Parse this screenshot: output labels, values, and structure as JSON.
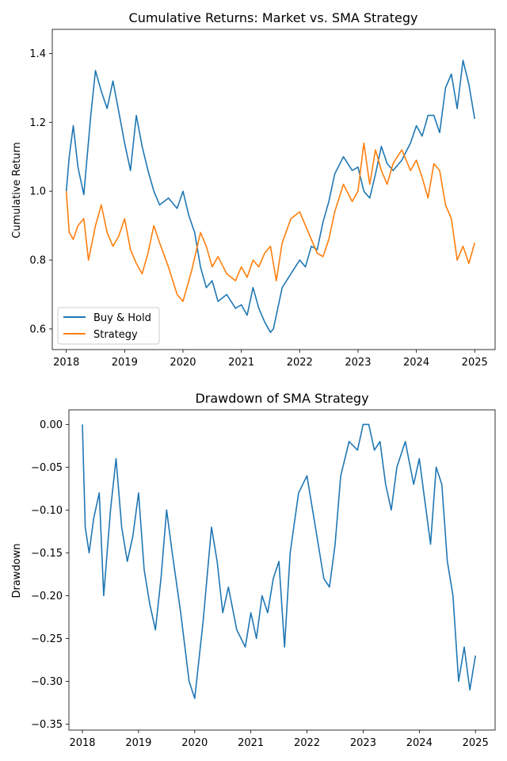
{
  "chart_data": [
    {
      "type": "line",
      "title": "Cumulative Returns: Market vs. SMA Strategy",
      "xlabel": "",
      "ylabel": "Cumulative Return",
      "x_ticks": [
        "2018",
        "2019",
        "2020",
        "2021",
        "2022",
        "2023",
        "2024",
        "2025"
      ],
      "y_ticks": [
        "0.6",
        "0.8",
        "1.0",
        "1.2",
        "1.4"
      ],
      "xlim": [
        2017.76,
        2025.35
      ],
      "ylim": [
        0.54,
        1.47
      ],
      "legend": {
        "placement": "lower-left",
        "entries": [
          "Buy & Hold",
          "Strategy"
        ]
      },
      "grid": false,
      "series": [
        {
          "name": "Buy & Hold",
          "color": "#1f77b4",
          "x": [
            2018.0,
            2018.05,
            2018.12,
            2018.2,
            2018.3,
            2018.42,
            2018.5,
            2018.6,
            2018.7,
            2018.8,
            2018.9,
            2019.0,
            2019.1,
            2019.2,
            2019.3,
            2019.4,
            2019.5,
            2019.6,
            2019.75,
            2019.9,
            2020.0,
            2020.1,
            2020.2,
            2020.3,
            2020.4,
            2020.5,
            2020.6,
            2020.75,
            2020.9,
            2021.0,
            2021.1,
            2021.2,
            2021.3,
            2021.4,
            2021.5,
            2021.55,
            2021.7,
            2021.85,
            2022.0,
            2022.1,
            2022.2,
            2022.3,
            2022.4,
            2022.5,
            2022.6,
            2022.75,
            2022.9,
            2023.0,
            2023.1,
            2023.2,
            2023.3,
            2023.4,
            2023.5,
            2023.6,
            2023.75,
            2023.9,
            2024.0,
            2024.1,
            2024.2,
            2024.3,
            2024.4,
            2024.5,
            2024.6,
            2024.7,
            2024.8,
            2024.9,
            2025.0
          ],
          "values": [
            1.0,
            1.1,
            1.19,
            1.07,
            0.99,
            1.22,
            1.35,
            1.29,
            1.24,
            1.32,
            1.23,
            1.14,
            1.06,
            1.22,
            1.13,
            1.06,
            1.0,
            0.96,
            0.98,
            0.95,
            1.0,
            0.93,
            0.88,
            0.78,
            0.72,
            0.74,
            0.68,
            0.7,
            0.66,
            0.67,
            0.64,
            0.72,
            0.66,
            0.62,
            0.59,
            0.6,
            0.72,
            0.76,
            0.8,
            0.78,
            0.84,
            0.83,
            0.91,
            0.97,
            1.05,
            1.1,
            1.06,
            1.07,
            1.0,
            0.98,
            1.05,
            1.13,
            1.08,
            1.06,
            1.09,
            1.14,
            1.19,
            1.16,
            1.22,
            1.22,
            1.17,
            1.3,
            1.34,
            1.24,
            1.38,
            1.31,
            1.21
          ]
        },
        {
          "name": "Strategy",
          "color": "#ff7f0e",
          "x": [
            2018.0,
            2018.05,
            2018.12,
            2018.2,
            2018.3,
            2018.38,
            2018.5,
            2018.6,
            2018.7,
            2018.8,
            2018.9,
            2019.0,
            2019.1,
            2019.2,
            2019.3,
            2019.4,
            2019.5,
            2019.6,
            2019.75,
            2019.9,
            2020.0,
            2020.15,
            2020.3,
            2020.4,
            2020.5,
            2020.6,
            2020.75,
            2020.9,
            2021.0,
            2021.1,
            2021.2,
            2021.3,
            2021.4,
            2021.5,
            2021.6,
            2021.7,
            2021.85,
            2022.0,
            2022.1,
            2022.2,
            2022.3,
            2022.4,
            2022.5,
            2022.6,
            2022.75,
            2022.9,
            2023.0,
            2023.1,
            2023.2,
            2023.3,
            2023.4,
            2023.5,
            2023.6,
            2023.75,
            2023.9,
            2024.0,
            2024.1,
            2024.2,
            2024.3,
            2024.4,
            2024.5,
            2024.6,
            2024.7,
            2024.8,
            2024.9,
            2025.0
          ],
          "values": [
            1.0,
            0.88,
            0.86,
            0.9,
            0.92,
            0.8,
            0.9,
            0.96,
            0.88,
            0.84,
            0.87,
            0.92,
            0.83,
            0.79,
            0.76,
            0.82,
            0.9,
            0.85,
            0.78,
            0.7,
            0.68,
            0.77,
            0.88,
            0.84,
            0.78,
            0.81,
            0.76,
            0.74,
            0.78,
            0.75,
            0.8,
            0.78,
            0.82,
            0.84,
            0.74,
            0.85,
            0.92,
            0.94,
            0.9,
            0.86,
            0.82,
            0.81,
            0.86,
            0.94,
            1.02,
            0.97,
            1.0,
            1.14,
            1.02,
            1.12,
            1.06,
            1.02,
            1.08,
            1.12,
            1.06,
            1.09,
            1.04,
            0.98,
            1.08,
            1.06,
            0.96,
            0.92,
            0.8,
            0.84,
            0.79,
            0.85
          ]
        }
      ]
    },
    {
      "type": "line",
      "title": "Drawdown of SMA Strategy",
      "xlabel": "",
      "ylabel": "Drawdown",
      "x_ticks": [
        "2018",
        "2019",
        "2020",
        "2021",
        "2022",
        "2023",
        "2024",
        "2025"
      ],
      "y_ticks": [
        "0.00",
        "−0.05",
        "−0.10",
        "−0.15",
        "−0.20",
        "−0.25",
        "−0.30",
        "−0.35"
      ],
      "xlim": [
        2017.76,
        2025.35
      ],
      "ylim": [
        -0.357,
        0.017
      ],
      "grid": false,
      "series": [
        {
          "color": "#1f77b4",
          "x": [
            2018.0,
            2018.05,
            2018.12,
            2018.2,
            2018.3,
            2018.38,
            2018.5,
            2018.6,
            2018.7,
            2018.8,
            2018.9,
            2019.0,
            2019.1,
            2019.2,
            2019.3,
            2019.4,
            2019.5,
            2019.6,
            2019.75,
            2019.9,
            2020.0,
            2020.15,
            2020.3,
            2020.4,
            2020.5,
            2020.6,
            2020.75,
            2020.9,
            2021.0,
            2021.1,
            2021.2,
            2021.3,
            2021.4,
            2021.5,
            2021.6,
            2021.7,
            2021.85,
            2022.0,
            2022.1,
            2022.2,
            2022.3,
            2022.4,
            2022.5,
            2022.6,
            2022.75,
            2022.9,
            2023.0,
            2023.1,
            2023.2,
            2023.3,
            2023.4,
            2023.5,
            2023.6,
            2023.75,
            2023.9,
            2024.0,
            2024.1,
            2024.2,
            2024.3,
            2024.4,
            2024.5,
            2024.6,
            2024.7,
            2024.8,
            2024.9,
            2025.0
          ],
          "values": [
            0.0,
            -0.12,
            -0.15,
            -0.11,
            -0.08,
            -0.2,
            -0.1,
            -0.04,
            -0.12,
            -0.16,
            -0.13,
            -0.08,
            -0.17,
            -0.21,
            -0.24,
            -0.18,
            -0.1,
            -0.15,
            -0.22,
            -0.3,
            -0.32,
            -0.23,
            -0.12,
            -0.16,
            -0.22,
            -0.19,
            -0.24,
            -0.26,
            -0.22,
            -0.25,
            -0.2,
            -0.22,
            -0.18,
            -0.16,
            -0.26,
            -0.15,
            -0.08,
            -0.06,
            -0.1,
            -0.14,
            -0.18,
            -0.19,
            -0.14,
            -0.06,
            -0.02,
            -0.03,
            0.0,
            0.0,
            -0.03,
            -0.02,
            -0.07,
            -0.1,
            -0.05,
            -0.02,
            -0.07,
            -0.04,
            -0.09,
            -0.14,
            -0.05,
            -0.07,
            -0.16,
            -0.2,
            -0.3,
            -0.26,
            -0.31,
            -0.27
          ]
        }
      ]
    }
  ]
}
